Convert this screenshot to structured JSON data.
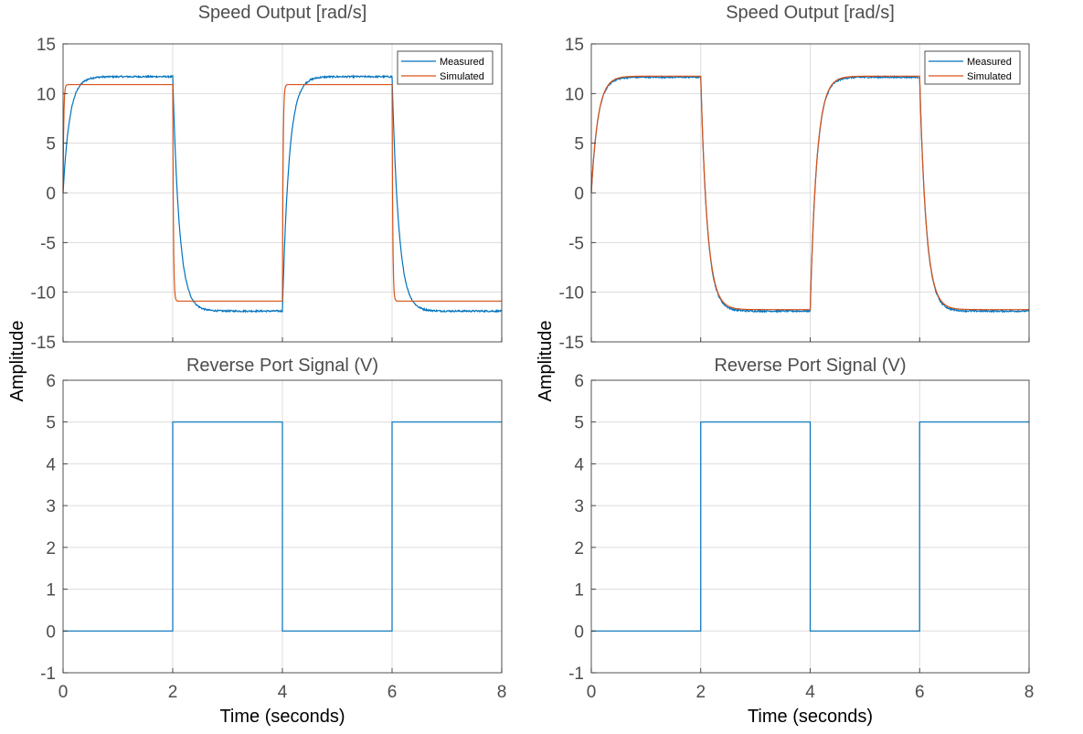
{
  "colors": {
    "measured": "#0072BD",
    "simulated": "#D95319",
    "grid": "#dcdcdc",
    "axis": "#262626"
  },
  "chart_data": [
    {
      "type": "line",
      "title": "Speed Output [rad/s]",
      "ylabel": "",
      "xlim": [
        0,
        8
      ],
      "ylim": [
        -15,
        15
      ],
      "yticks": [
        15,
        10,
        5,
        0,
        -5,
        -10,
        -15
      ],
      "xticks": [
        0,
        2,
        4,
        6,
        8
      ],
      "grid": true,
      "legend": "top-right",
      "series": [
        {
          "name": "Measured",
          "model": {
            "amp": 11.7,
            "negAmp": -11.9,
            "tau": 0.12,
            "noise": 0.08
          }
        },
        {
          "name": "Simulated",
          "model": {
            "amp": 10.9,
            "negAmp": -10.9,
            "tau": 0.012,
            "noise": 0
          }
        }
      ]
    },
    {
      "type": "line",
      "title": "Reverse Port Signal (V)",
      "xlabel": "Time (seconds)",
      "xlim": [
        0,
        8
      ],
      "ylim": [
        -1,
        6
      ],
      "yticks": [
        6,
        5,
        4,
        3,
        2,
        1,
        0,
        -1
      ],
      "xticks": [
        0,
        2,
        4,
        6,
        8
      ],
      "grid": true,
      "series": [
        {
          "name": "",
          "x": [
            0,
            2,
            2,
            4,
            4,
            6,
            6,
            8
          ],
          "y": [
            0,
            0,
            5,
            5,
            0,
            0,
            5,
            5
          ]
        }
      ]
    },
    {
      "type": "line",
      "title": "Speed Output [rad/s]",
      "xlim": [
        0,
        8
      ],
      "ylim": [
        -15,
        15
      ],
      "yticks": [
        15,
        10,
        5,
        0,
        -5,
        -10,
        -15
      ],
      "xticks": [
        0,
        2,
        4,
        6,
        8
      ],
      "grid": true,
      "legend": "top-right",
      "series": [
        {
          "name": "Measured",
          "model": {
            "amp": 11.65,
            "negAmp": -11.9,
            "tau": 0.12,
            "noise": 0.08
          }
        },
        {
          "name": "Simulated",
          "model": {
            "amp": 11.75,
            "negAmp": -11.75,
            "tau": 0.12,
            "noise": 0
          }
        }
      ]
    },
    {
      "type": "line",
      "title": "Reverse Port Signal (V)",
      "xlabel": "Time (seconds)",
      "xlim": [
        0,
        8
      ],
      "ylim": [
        -1,
        6
      ],
      "yticks": [
        6,
        5,
        4,
        3,
        2,
        1,
        0,
        -1
      ],
      "xticks": [
        0,
        2,
        4,
        6,
        8
      ],
      "grid": true,
      "series": [
        {
          "name": "",
          "x": [
            0,
            2,
            2,
            4,
            4,
            6,
            6,
            8
          ],
          "y": [
            0,
            0,
            5,
            5,
            0,
            0,
            5,
            5
          ]
        }
      ]
    }
  ],
  "shared_ylabel": "Amplitude"
}
